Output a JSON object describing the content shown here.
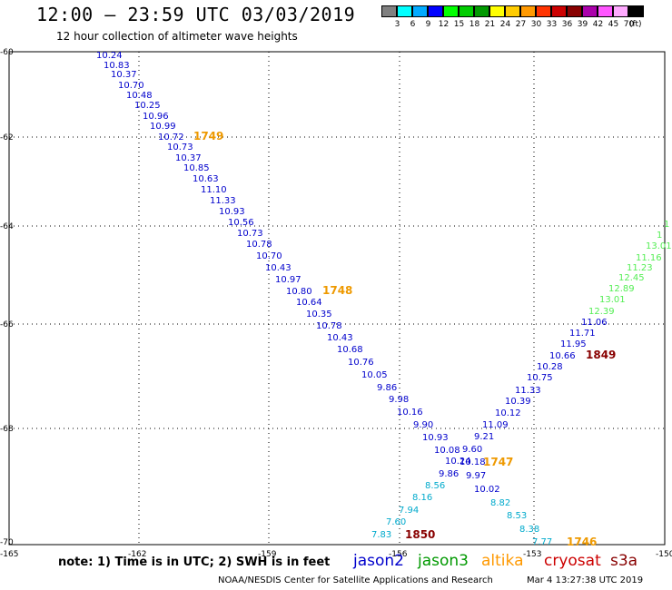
{
  "header": {
    "title": "12:00 – 23:59 UTC 03/03/2019",
    "subtitle": "12 hour collection of altimeter wave heights"
  },
  "colorbar": {
    "unit": "(ft)",
    "bins": [
      {
        "label": "3",
        "color": "#808080"
      },
      {
        "label": "6",
        "color": "#00ffff"
      },
      {
        "label": "9",
        "color": "#00aaff"
      },
      {
        "label": "12",
        "color": "#0000ff"
      },
      {
        "label": "15",
        "color": "#00ff00"
      },
      {
        "label": "18",
        "color": "#00cc00"
      },
      {
        "label": "21",
        "color": "#009900"
      },
      {
        "label": "24",
        "color": "#ffff00"
      },
      {
        "label": "27",
        "color": "#ffcc00"
      },
      {
        "label": "30",
        "color": "#ff9900"
      },
      {
        "label": "33",
        "color": "#ff3300"
      },
      {
        "label": "36",
        "color": "#cc0000"
      },
      {
        "label": "39",
        "color": "#880000"
      },
      {
        "label": "42",
        "color": "#aa00aa"
      },
      {
        "label": "45",
        "color": "#ff55ff"
      },
      {
        "label": "70",
        "color": "#ffaaff"
      },
      {
        "label": "",
        "color": "#000000"
      }
    ]
  },
  "axes": {
    "lat_labels": [
      "-60",
      "-62",
      "-64",
      "-66",
      "-68",
      "-70"
    ],
    "lon_labels": [
      "-165",
      "-162",
      "-159",
      "-156",
      "-153",
      "-150"
    ]
  },
  "tracks": [
    {
      "satellite": "jason2",
      "color": "#0000cc",
      "pass_label": "",
      "points": [
        "10.24",
        "10.83",
        "10.37",
        "10.70",
        "10.48",
        "10.25",
        "10.96",
        "10.99",
        "10.72",
        "10.73",
        "10.37",
        "10.85",
        "10.63",
        "11.10",
        "11.33",
        "10.93",
        "10.56",
        "10.73",
        "10.78",
        "10.70",
        "10.43",
        "10.97",
        "10.80",
        "10.64",
        "10.35",
        "10.78",
        "10.43",
        "10.68",
        "10.76",
        "10.05",
        "9.86",
        "9.98",
        "10.16",
        "9.90",
        "10.93",
        "10.08",
        "10.24",
        "9.86"
      ]
    },
    {
      "satellite": "jason2",
      "color": "#0000cc",
      "pass_label": "",
      "points": [
        "9.60",
        "9.21",
        "11.09",
        "10.12",
        "10.39",
        "11.33",
        "10.75",
        "10.28",
        "10.66",
        "11.95",
        "11.71",
        "11.06",
        "10.18",
        "9.97",
        "10.02"
      ]
    },
    {
      "satellite": "jason3",
      "color": "#55ee55",
      "pass_label": "",
      "points": [
        "12.39",
        "13.01",
        "12.89",
        "12.45",
        "11.23",
        "11.16",
        "13.01",
        "1",
        "1"
      ]
    },
    {
      "satellite": "altika",
      "color": "#00aacc",
      "pass_label": "",
      "points": [
        "8.56",
        "8.16",
        "7.94",
        "7.60",
        "7.83",
        "8.82",
        "8.53",
        "8.38",
        "7.77"
      ]
    }
  ],
  "pass_labels": [
    {
      "text": "1749",
      "color": "#ee9900"
    },
    {
      "text": "1748",
      "color": "#ee9900"
    },
    {
      "text": "1747",
      "color": "#ee9900"
    },
    {
      "text": "1746",
      "color": "#ee9900"
    },
    {
      "text": "1849",
      "color": "#880000"
    },
    {
      "text": "1850",
      "color": "#880000"
    }
  ],
  "footer": {
    "note": "note: 1) Time is in UTC; 2) SWH is in feet",
    "satellites": [
      {
        "name": "jason2",
        "color": "#0000cc"
      },
      {
        "name": "jason3",
        "color": "#009900"
      },
      {
        "name": "altika",
        "color": "#ff9900"
      },
      {
        "name": "cryosat",
        "color": "#cc0000"
      },
      {
        "name": "s3a",
        "color": "#880000"
      }
    ],
    "credit": "NOAA/NESDIS Center for Satellite Applications and Research",
    "stamp": "Mar  4 13:27:38 UTC 2019"
  }
}
